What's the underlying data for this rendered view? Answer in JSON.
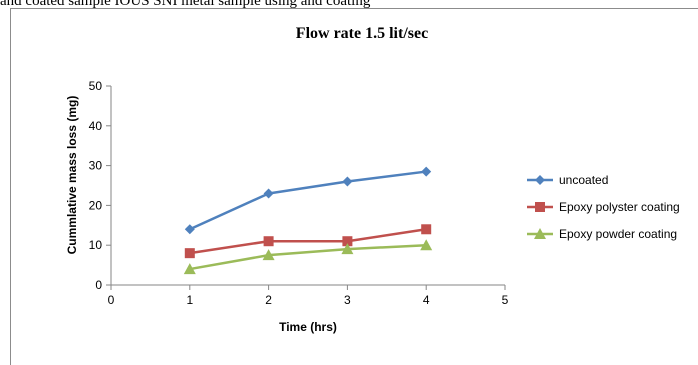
{
  "caption_fragment": "and coated sample IOUS SNI metal sample using and coating",
  "chart_data": {
    "type": "line",
    "title": "Flow rate 1.5 lit/sec",
    "xlabel": "Time (hrs)",
    "ylabel": "Cummlative mass loss (mg)",
    "xlim": [
      0,
      5
    ],
    "ylim": [
      0,
      50
    ],
    "x_ticks": [
      0,
      1,
      2,
      3,
      4,
      5
    ],
    "y_ticks": [
      0,
      10,
      20,
      30,
      40,
      50
    ],
    "grid": false,
    "legend_position": "right",
    "x": [
      1,
      2,
      3,
      4
    ],
    "series": [
      {
        "name": "uncoated",
        "values": [
          14,
          23,
          26,
          28.5
        ],
        "color": "#4f81bd",
        "marker": "diamond"
      },
      {
        "name": "Epoxy polyster coating",
        "values": [
          8,
          11,
          11,
          14
        ],
        "color": "#c0504d",
        "marker": "square"
      },
      {
        "name": "Epoxy powder coating",
        "values": [
          4,
          7.5,
          9,
          10
        ],
        "color": "#9bbb59",
        "marker": "triangle"
      }
    ]
  }
}
